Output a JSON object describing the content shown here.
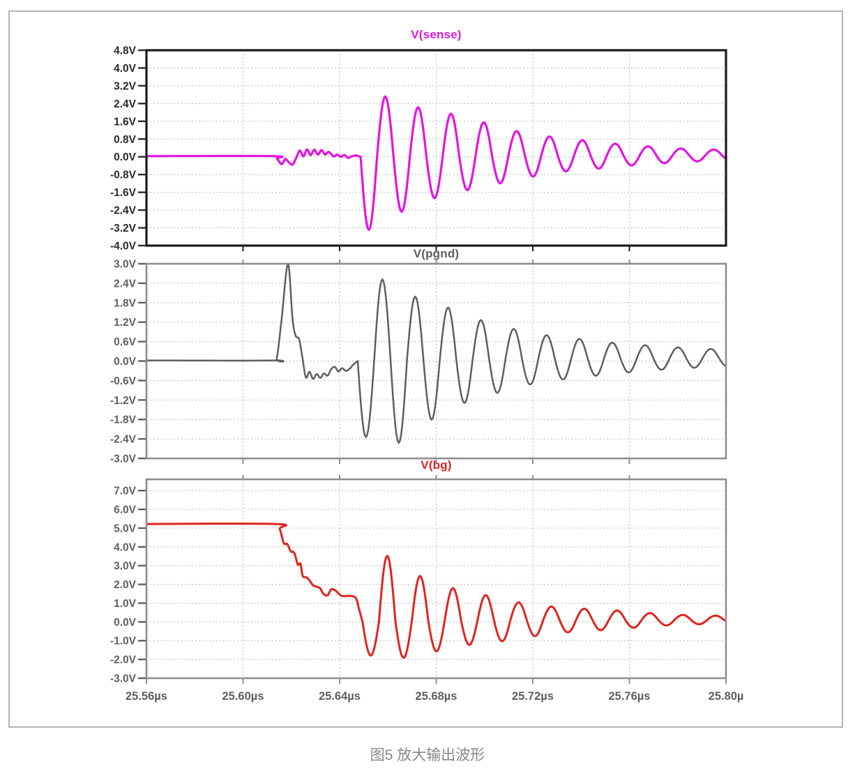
{
  "page": {
    "caption": "图5 放大输出波形"
  },
  "x_axis": {
    "tick_labels": [
      "25.56µs",
      "25.60µs",
      "25.64µs",
      "25.68µs",
      "25.72µs",
      "25.76µs",
      "25.80µ"
    ],
    "tick_values": [
      25.56,
      25.6,
      25.64,
      25.68,
      25.72,
      25.76,
      25.8
    ],
    "label_color": "#5f5f5f",
    "xlim": [
      25.56,
      25.8
    ],
    "unit": "µs"
  },
  "chart_data": [
    {
      "type": "line",
      "id": "vsense",
      "title": "V(sense)",
      "title_color": "#e314e3",
      "trace_color": "#e314e3",
      "label_color": "#2a2a2a",
      "border_color": "#1a1a1a",
      "border_width": 3.2,
      "trace_width": 3.2,
      "grid": true,
      "ylim": [
        -4.0,
        4.8
      ],
      "y_tick_labels": [
        "4.8V",
        "4.0V",
        "3.2V",
        "2.4V",
        "1.6V",
        "0.8V",
        "0.0V",
        "-0.8V",
        "-1.6V",
        "-2.4V",
        "-3.2V",
        "-4.0V"
      ],
      "y_tick_values": [
        4.8,
        4.0,
        3.2,
        2.4,
        1.6,
        0.8,
        0.0,
        -0.8,
        -1.6,
        -2.4,
        -3.2,
        -4.0
      ],
      "keypoints": [
        [
          25.56,
          0.03
        ],
        [
          25.612,
          0.03
        ],
        [
          25.614,
          -0.08
        ],
        [
          25.616,
          -0.33
        ],
        [
          25.6175,
          -0.1
        ],
        [
          25.619,
          -0.25
        ],
        [
          25.6205,
          -0.35
        ],
        [
          25.622,
          -0.05
        ],
        [
          25.6235,
          0.28
        ],
        [
          25.625,
          0.02
        ],
        [
          25.6265,
          0.33
        ],
        [
          25.628,
          0.08
        ],
        [
          25.6295,
          0.32
        ],
        [
          25.631,
          0.1
        ],
        [
          25.6325,
          0.3
        ],
        [
          25.634,
          0.1
        ],
        [
          25.6355,
          0.22
        ],
        [
          25.6375,
          0.02
        ],
        [
          25.639,
          0.1
        ],
        [
          25.6405,
          0.0
        ],
        [
          25.642,
          0.08
        ],
        [
          25.6435,
          -0.05
        ],
        [
          25.645,
          0.02
        ],
        [
          25.647,
          0.06
        ],
        [
          25.648,
          0.02
        ],
        [
          25.6487,
          0.0
        ]
      ],
      "ring": {
        "t0": 25.6487,
        "period": 0.0136,
        "neg_first": true,
        "extrema": [
          3.3,
          2.7,
          2.5,
          2.2,
          1.9,
          1.9,
          1.55,
          1.5,
          1.25,
          1.1,
          0.95,
          0.85,
          0.72,
          0.68,
          0.6,
          0.52,
          0.46,
          0.4,
          0.36,
          0.3,
          0.28,
          0.25,
          0.23,
          0.2
        ],
        "offset": 0.08,
        "offset_tau": 0.05
      }
    },
    {
      "type": "line",
      "id": "vpgnd",
      "title": "V(pgnd)",
      "title_color": "#5e5e5e",
      "trace_color": "#5e5e5e",
      "label_color": "#606060",
      "border_color": "#8e8e8e",
      "border_width": 2.6,
      "trace_width": 2.5,
      "grid": true,
      "ylim": [
        -3.0,
        3.0
      ],
      "y_tick_labels": [
        "3.0V",
        "2.4V",
        "1.8V",
        "1.2V",
        "0.6V",
        "0.0V",
        "-0.6V",
        "-1.2V",
        "-1.8V",
        "-2.4V",
        "-3.0V"
      ],
      "y_tick_values": [
        3.0,
        2.4,
        1.8,
        1.2,
        0.6,
        0.0,
        -0.6,
        -1.2,
        -1.8,
        -2.4,
        -3.0
      ],
      "keypoints": [
        [
          25.56,
          0.02
        ],
        [
          25.6125,
          0.02
        ],
        [
          25.614,
          0.1
        ],
        [
          25.616,
          1.3
        ],
        [
          25.6186,
          3.0
        ],
        [
          25.6205,
          1.3
        ],
        [
          25.6218,
          0.78
        ],
        [
          25.6232,
          0.68
        ],
        [
          25.6245,
          0.15
        ],
        [
          25.626,
          -0.5
        ],
        [
          25.6275,
          -0.33
        ],
        [
          25.629,
          -0.55
        ],
        [
          25.6305,
          -0.4
        ],
        [
          25.632,
          -0.52
        ],
        [
          25.6335,
          -0.38
        ],
        [
          25.635,
          -0.45
        ],
        [
          25.6365,
          -0.25
        ],
        [
          25.638,
          -0.18
        ],
        [
          25.6395,
          -0.32
        ],
        [
          25.641,
          -0.22
        ],
        [
          25.6425,
          -0.3
        ],
        [
          25.644,
          -0.25
        ],
        [
          25.6455,
          -0.12
        ],
        [
          25.6468,
          -0.04
        ],
        [
          25.6475,
          0.0
        ]
      ],
      "ring": {
        "t0": 25.6475,
        "period": 0.0136,
        "neg_first": true,
        "extrema": [
          2.35,
          2.5,
          2.55,
          1.95,
          1.85,
          1.6,
          1.35,
          1.2,
          1.05,
          0.92,
          0.8,
          0.72,
          0.65,
          0.6,
          0.54,
          0.48,
          0.44,
          0.4,
          0.36,
          0.33,
          0.3,
          0.28,
          0.26,
          0.24
        ],
        "offset": 0.1,
        "offset_tau": 0.05
      }
    },
    {
      "type": "line",
      "id": "vbg",
      "title": "V(bg)",
      "title_color": "#e0241f",
      "trace_color": "#e0241f",
      "label_color": "#606060",
      "border_color": "#8e8e8e",
      "border_width": 2.6,
      "trace_width": 3.0,
      "grid": true,
      "ylim": [
        -3.0,
        7.6
      ],
      "y_tick_labels": [
        "7.0V",
        "6.0V",
        "5.0V",
        "4.0V",
        "3.0V",
        "2.0V",
        "1.0V",
        "0.0V",
        "-1.0V",
        "-2.0V",
        "-3.0V"
      ],
      "y_tick_values": [
        7.0,
        6.0,
        5.0,
        4.0,
        3.0,
        2.0,
        1.0,
        0.0,
        -1.0,
        -2.0,
        -3.0
      ],
      "keypoints": [
        [
          25.56,
          5.22
        ],
        [
          25.6135,
          5.22
        ],
        [
          25.6152,
          4.95
        ],
        [
          25.6169,
          4.2
        ],
        [
          25.6183,
          4.15
        ],
        [
          25.6198,
          3.76
        ],
        [
          25.6212,
          3.68
        ],
        [
          25.6227,
          3.06
        ],
        [
          25.6238,
          3.1
        ],
        [
          25.6247,
          2.45
        ],
        [
          25.6262,
          2.38
        ],
        [
          25.6275,
          2.22
        ],
        [
          25.629,
          1.95
        ],
        [
          25.6305,
          1.88
        ],
        [
          25.632,
          1.78
        ],
        [
          25.6333,
          1.5
        ],
        [
          25.635,
          1.42
        ],
        [
          25.6365,
          1.73
        ],
        [
          25.6382,
          1.68
        ],
        [
          25.6398,
          1.48
        ],
        [
          25.6413,
          1.38
        ],
        [
          25.6448,
          1.38
        ],
        [
          25.6468,
          1.25
        ],
        [
          25.648,
          0.7
        ],
        [
          25.6495,
          0.0
        ]
      ],
      "ring": {
        "t0": 25.6495,
        "period": 0.0136,
        "neg_first": true,
        "extrema": [
          1.8,
          3.5,
          1.95,
          2.4,
          1.63,
          1.73,
          1.3,
          1.35,
          1.12,
          0.95,
          0.85,
          0.72,
          0.66,
          0.6,
          0.55,
          0.5,
          0.42,
          0.36,
          0.3,
          0.26,
          0.24,
          0.22,
          0.2
        ],
        "offset": 0.12,
        "offset_tau": 0.045
      }
    }
  ]
}
